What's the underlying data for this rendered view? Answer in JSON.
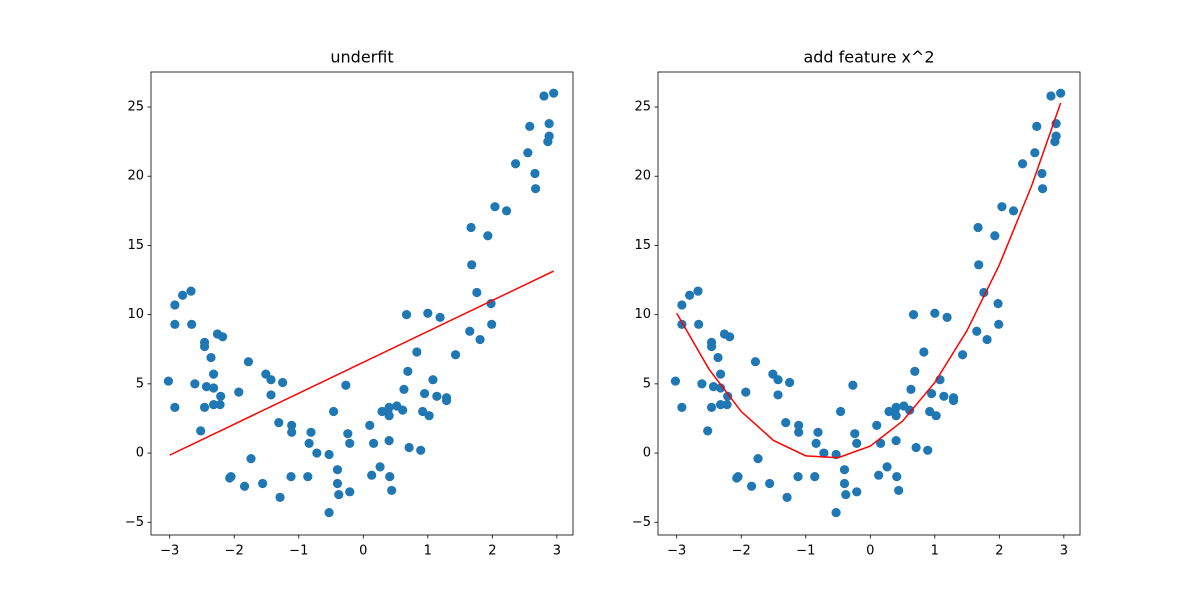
{
  "chart_data": [
    {
      "type": "scatter",
      "title": "underfit",
      "x": [
        -3.02,
        -2.92,
        -2.92,
        -2.92,
        -2.8,
        -2.67,
        -2.66,
        -2.61,
        -2.52,
        -2.46,
        -2.46,
        -2.46,
        -2.43,
        -2.36,
        -2.32,
        -2.32,
        -2.32,
        -2.26,
        -2.22,
        -2.21,
        -2.18,
        -2.07,
        -2.05,
        -1.93,
        -1.84,
        -1.78,
        -1.74,
        -1.56,
        -1.51,
        -1.43,
        -1.43,
        -1.31,
        -1.29,
        -1.25,
        -1.12,
        -1.11,
        -1.11,
        -0.86,
        -0.84,
        -0.81,
        -0.72,
        -0.53,
        -0.53,
        -0.46,
        -0.4,
        -0.4,
        -0.38,
        -0.27,
        -0.24,
        -0.21,
        -0.21,
        0.1,
        0.13,
        0.16,
        0.26,
        0.29,
        0.38,
        0.4,
        0.4,
        0.4,
        0.41,
        0.44,
        0.52,
        0.61,
        0.63,
        0.67,
        0.69,
        0.71,
        0.83,
        0.89,
        0.92,
        0.95,
        1.0,
        1.02,
        1.08,
        1.14,
        1.19,
        1.29,
        1.29,
        1.43,
        1.65,
        1.67,
        1.68,
        1.76,
        1.81,
        1.93,
        1.98,
        1.99,
        2.04,
        2.22,
        2.36,
        2.55,
        2.58,
        2.66,
        2.67,
        2.8,
        2.88,
        2.88,
        2.86,
        2.95
      ],
      "y": [
        5.2,
        10.7,
        9.3,
        3.3,
        11.4,
        11.7,
        9.3,
        5.0,
        1.6,
        8.0,
        7.7,
        3.3,
        4.8,
        6.9,
        5.7,
        4.7,
        3.5,
        8.6,
        3.5,
        4.1,
        8.4,
        -1.8,
        -1.7,
        4.4,
        -2.4,
        6.6,
        -0.4,
        -2.2,
        5.7,
        5.3,
        4.2,
        2.2,
        -3.2,
        5.1,
        -1.7,
        2.0,
        1.5,
        -1.7,
        0.7,
        1.5,
        0.0,
        -0.1,
        -4.3,
        3.0,
        -1.2,
        -2.2,
        -3.0,
        4.9,
        1.4,
        0.7,
        -2.8,
        2.0,
        -1.6,
        0.7,
        -1.0,
        3.0,
        3.0,
        3.3,
        2.7,
        0.9,
        -1.7,
        -2.7,
        3.4,
        3.1,
        4.6,
        10.0,
        5.9,
        0.4,
        7.3,
        0.2,
        3.0,
        4.3,
        10.1,
        2.7,
        5.3,
        4.1,
        9.8,
        4.0,
        3.8,
        7.1,
        8.8,
        16.3,
        13.6,
        11.6,
        8.2,
        15.7,
        10.8,
        9.3,
        17.8,
        17.5,
        20.9,
        21.7,
        23.6,
        20.2,
        19.1,
        25.8,
        23.8,
        22.9,
        22.5,
        26.0
      ],
      "color": "#1f77b4",
      "line": {
        "x": [
          -3,
          2.95
        ],
        "y": [
          -0.15,
          13.15
        ],
        "color": "#ff0000"
      },
      "xlim": [
        -3.29,
        3.25
      ],
      "ylim": [
        -5.92,
        27.53
      ],
      "xticks": [
        {
          "value": -3,
          "label": "−3"
        },
        {
          "value": -2,
          "label": "−2"
        },
        {
          "value": -1,
          "label": "−1"
        },
        0,
        1,
        2,
        3
      ],
      "yticks": [
        {
          "value": -5,
          "label": "−5"
        },
        0,
        5,
        10,
        15,
        20,
        25
      ]
    },
    {
      "type": "scatter",
      "title": "add feature x^2",
      "x": [
        -3.02,
        -2.92,
        -2.92,
        -2.92,
        -2.8,
        -2.67,
        -2.66,
        -2.61,
        -2.52,
        -2.46,
        -2.46,
        -2.46,
        -2.43,
        -2.36,
        -2.32,
        -2.32,
        -2.32,
        -2.26,
        -2.22,
        -2.21,
        -2.18,
        -2.07,
        -2.05,
        -1.93,
        -1.84,
        -1.78,
        -1.74,
        -1.56,
        -1.51,
        -1.43,
        -1.43,
        -1.31,
        -1.29,
        -1.25,
        -1.12,
        -1.11,
        -1.11,
        -0.86,
        -0.84,
        -0.81,
        -0.72,
        -0.53,
        -0.53,
        -0.46,
        -0.4,
        -0.4,
        -0.38,
        -0.27,
        -0.24,
        -0.21,
        -0.21,
        0.1,
        0.13,
        0.16,
        0.26,
        0.29,
        0.38,
        0.4,
        0.4,
        0.4,
        0.41,
        0.44,
        0.52,
        0.61,
        0.63,
        0.67,
        0.69,
        0.71,
        0.83,
        0.89,
        0.92,
        0.95,
        1.0,
        1.02,
        1.08,
        1.14,
        1.19,
        1.29,
        1.29,
        1.43,
        1.65,
        1.67,
        1.68,
        1.76,
        1.81,
        1.93,
        1.98,
        1.99,
        2.04,
        2.22,
        2.36,
        2.55,
        2.58,
        2.66,
        2.67,
        2.8,
        2.88,
        2.88,
        2.86,
        2.95
      ],
      "y": [
        5.2,
        10.7,
        9.3,
        3.3,
        11.4,
        11.7,
        9.3,
        5.0,
        1.6,
        8.0,
        7.7,
        3.3,
        4.8,
        6.9,
        5.7,
        4.7,
        3.5,
        8.6,
        3.5,
        4.1,
        8.4,
        -1.8,
        -1.7,
        4.4,
        -2.4,
        6.6,
        -0.4,
        -2.2,
        5.7,
        5.3,
        4.2,
        2.2,
        -3.2,
        5.1,
        -1.7,
        2.0,
        1.5,
        -1.7,
        0.7,
        1.5,
        0.0,
        -0.1,
        -4.3,
        3.0,
        -1.2,
        -2.2,
        -3.0,
        4.9,
        1.4,
        0.7,
        -2.8,
        2.0,
        -1.6,
        0.7,
        -1.0,
        3.0,
        3.0,
        3.3,
        2.7,
        0.9,
        -1.7,
        -2.7,
        3.4,
        3.1,
        4.6,
        10.0,
        5.9,
        0.4,
        7.3,
        0.2,
        3.0,
        4.3,
        10.1,
        2.7,
        5.3,
        4.1,
        9.8,
        4.0,
        3.8,
        7.1,
        8.8,
        16.3,
        13.6,
        11.6,
        8.2,
        15.7,
        10.8,
        9.3,
        17.8,
        17.5,
        20.9,
        21.7,
        23.6,
        20.2,
        19.1,
        25.8,
        23.8,
        22.9,
        22.5,
        26.0
      ],
      "color": "#1f77b4",
      "line": {
        "x": [
          -3,
          -2.5,
          -2,
          -1.5,
          -1,
          -0.5,
          0,
          0.5,
          1,
          1.5,
          2,
          2.5,
          2.95
        ],
        "y": [
          10.1,
          6.06,
          3.0,
          0.91,
          -0.2,
          -0.34,
          0.5,
          2.31,
          5.1,
          8.86,
          13.6,
          19.3,
          25.29
        ],
        "color": "#ff0000"
      },
      "xlim": [
        -3.29,
        3.25
      ],
      "ylim": [
        -5.92,
        27.53
      ],
      "xticks": [
        {
          "value": -3,
          "label": "−3"
        },
        {
          "value": -2,
          "label": "−2"
        },
        {
          "value": -1,
          "label": "−1"
        },
        0,
        1,
        2,
        3
      ],
      "yticks": [
        {
          "value": -5,
          "label": "−5"
        },
        0,
        5,
        10,
        15,
        20,
        25
      ]
    }
  ]
}
